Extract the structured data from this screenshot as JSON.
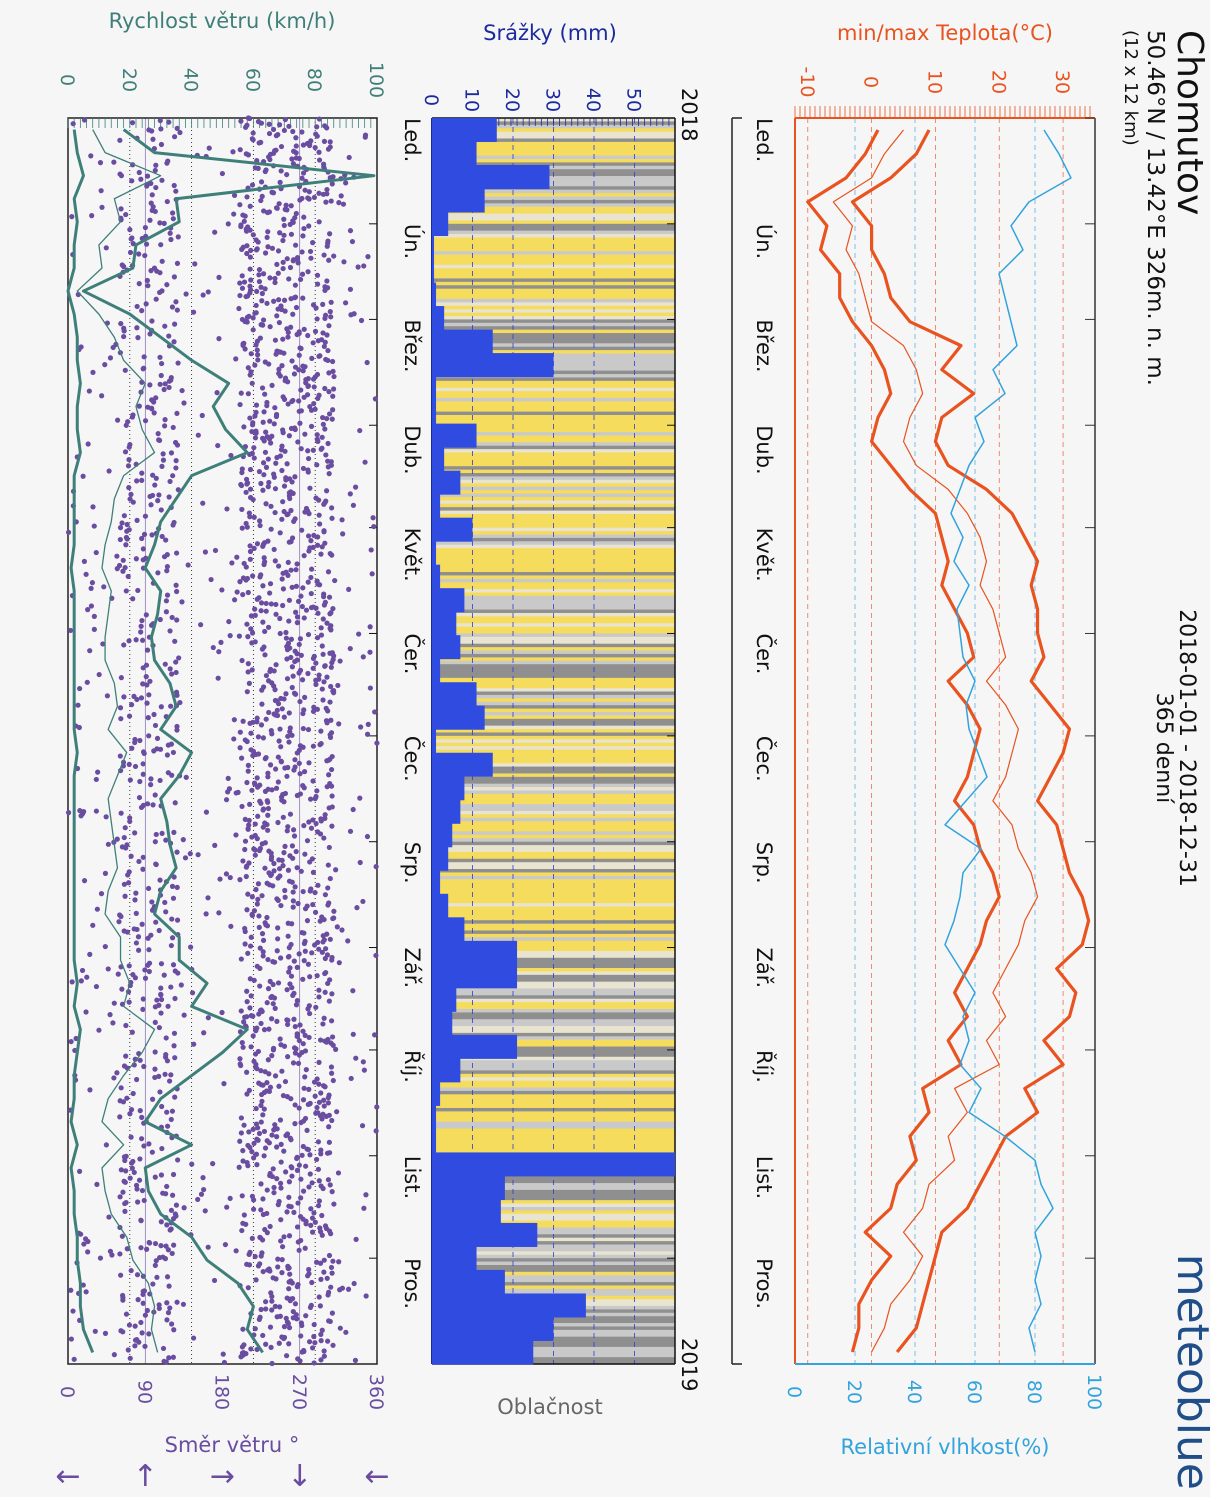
{
  "header": {
    "location": "Chomutov",
    "coords": "50.46°N / 13.42°E   326m. n. m.",
    "grid": "(12 x 12 km)",
    "date_range": "2018-01-01 - 2018-12-31",
    "days": "365 denní",
    "brand": "meteoblue"
  },
  "colors": {
    "temperature": "#e8531f",
    "humidity": "#33a3dc",
    "precipitation": "#2f4be0",
    "cloud_yellow": "#f5dc5c",
    "cloud_gray": "#a0a0a0",
    "wind_speed": "#3f7f7a",
    "wind_direction": "#6a4ca0",
    "background": "#f6f6f6"
  },
  "chart_data": [
    {
      "type": "line",
      "title": "min/max Teplota(°C)",
      "secondary_axis_label": "Relativní vlhkost(%)",
      "months": [
        "Led.",
        "Ún.",
        "Břez.",
        "Dub.",
        "Květ.",
        "Čer.",
        "Čec.",
        "Srp.",
        "Zář.",
        "Říj.",
        "List.",
        "Pros."
      ],
      "x_unit": "week of 2018",
      "temp_ticks": [
        "-10",
        "0",
        "10",
        "20",
        "30"
      ],
      "ylim_temp": [
        -12,
        35
      ],
      "humidity_ticks": [
        "0",
        "20",
        "40",
        "60",
        "80",
        "100"
      ],
      "ylim_humidity": [
        0,
        100
      ],
      "grid": true,
      "series": [
        {
          "name": "max",
          "values": [
            9,
            7,
            3,
            -3,
            0,
            0,
            2,
            3,
            6,
            14,
            11,
            16,
            11,
            10,
            12,
            18,
            22,
            24,
            26,
            25,
            26,
            26,
            27,
            25,
            28,
            31,
            30,
            28,
            26,
            29,
            30,
            31,
            33,
            34,
            33,
            29,
            32,
            31,
            27,
            30,
            24,
            26,
            21,
            19,
            17,
            15,
            11,
            10,
            9,
            8,
            7,
            4
          ]
        },
        {
          "mean": true,
          "name": "avg",
          "values": [
            5,
            2,
            0,
            -6,
            -3,
            -4,
            -2,
            -1,
            0,
            5,
            7,
            8,
            6,
            5,
            7,
            12,
            15,
            17,
            18,
            17,
            19,
            20,
            21,
            18,
            21,
            23,
            22,
            21,
            19,
            22,
            23,
            25,
            26,
            24,
            23,
            21,
            19,
            21,
            18,
            20,
            13,
            15,
            12,
            13,
            9,
            8,
            5,
            8,
            6,
            3,
            2,
            0
          ]
        },
        {
          "name": "min",
          "values": [
            1,
            -1,
            -4,
            -10,
            -7,
            -8,
            -5,
            -5,
            -3,
            0,
            2,
            3,
            1,
            0,
            3,
            6,
            10,
            11,
            12,
            11,
            13,
            15,
            16,
            12,
            15,
            17,
            16,
            15,
            13,
            16,
            17,
            19,
            20,
            18,
            17,
            15,
            13,
            15,
            12,
            14,
            8,
            9,
            6,
            7,
            4,
            3,
            -1,
            3,
            0,
            -2,
            -2,
            -3
          ]
        },
        {
          "name": "humidity",
          "axis": "secondary",
          "values": [
            83,
            88,
            92,
            78,
            72,
            76,
            68,
            70,
            72,
            74,
            66,
            70,
            60,
            63,
            58,
            55,
            52,
            56,
            53,
            58,
            54,
            55,
            56,
            60,
            57,
            58,
            61,
            64,
            57,
            50,
            62,
            56,
            55,
            53,
            50,
            55,
            60,
            56,
            58,
            55,
            62,
            58,
            70,
            80,
            82,
            86,
            80,
            82,
            80,
            82,
            78,
            80
          ]
        }
      ]
    },
    {
      "type": "bar",
      "title": "Srážky (mm)",
      "secondary_axis_label": "Oblačnost",
      "axis_years": [
        "2018",
        "2019"
      ],
      "y_ticks": [
        "0",
        "10",
        "20",
        "30",
        "40",
        "50"
      ],
      "ylim": [
        0,
        60
      ],
      "x_unit": "week of 2018",
      "series": [
        {
          "name": "Srážky",
          "values": [
            16,
            11,
            29,
            13,
            4,
            0.5,
            0.5,
            1,
            3,
            15,
            30,
            1,
            1,
            11,
            3,
            7,
            2,
            10,
            1,
            2,
            8,
            6,
            7,
            2,
            11,
            13,
            1,
            15,
            8,
            7,
            5,
            4,
            2,
            4,
            8,
            21,
            21,
            6,
            5,
            21,
            7,
            2,
            1,
            1,
            60,
            18,
            17,
            26,
            11,
            18,
            38,
            30,
            25
          ]
        }
      ]
    },
    {
      "type": "line",
      "title": "Rychlost větru (km/h)",
      "secondary_axis_label": "Směr větru °",
      "speed_ticks": [
        "0",
        "20",
        "40",
        "60",
        "80",
        "100"
      ],
      "ylim_speed": [
        0,
        100
      ],
      "direction_ticks": [
        "0",
        "90",
        "180",
        "270",
        "360"
      ],
      "ylim_direction": [
        0,
        360
      ],
      "x_unit": "week of 2018",
      "series": [
        {
          "name": "max",
          "values": [
            18,
            28,
            99,
            35,
            36,
            22,
            21,
            5,
            20,
            30,
            40,
            52,
            47,
            51,
            58,
            40,
            35,
            30,
            28,
            25,
            30,
            29,
            27,
            28,
            33,
            35,
            30,
            40,
            36,
            30,
            32,
            33,
            35,
            30,
            28,
            36,
            36,
            45,
            40,
            58,
            50,
            40,
            30,
            25,
            40,
            25,
            26,
            30,
            40,
            45,
            55,
            60,
            58,
            63
          ]
        },
        {
          "name": "avg",
          "values": [
            8,
            12,
            30,
            15,
            17,
            10,
            11,
            3,
            10,
            15,
            18,
            25,
            22,
            24,
            28,
            18,
            15,
            14,
            12,
            11,
            14,
            13,
            12,
            12,
            15,
            16,
            13,
            19,
            16,
            13,
            14,
            15,
            16,
            13,
            12,
            17,
            17,
            20,
            18,
            28,
            24,
            18,
            13,
            11,
            18,
            11,
            12,
            14,
            19,
            21,
            26,
            28,
            27,
            29
          ]
        },
        {
          "name": "min",
          "values": [
            2,
            3,
            5,
            2,
            3,
            2,
            2,
            0,
            2,
            3,
            3,
            4,
            3,
            3,
            4,
            2,
            2,
            2,
            2,
            1,
            2,
            2,
            2,
            2,
            2,
            2,
            2,
            3,
            2,
            2,
            2,
            2,
            2,
            2,
            2,
            2,
            2,
            3,
            2,
            4,
            3,
            2,
            2,
            1,
            3,
            1,
            2,
            2,
            3,
            3,
            4,
            4,
            5,
            8
          ]
        }
      ],
      "arrows": [
        "←",
        "↑",
        "→",
        "↓",
        "←"
      ]
    }
  ]
}
